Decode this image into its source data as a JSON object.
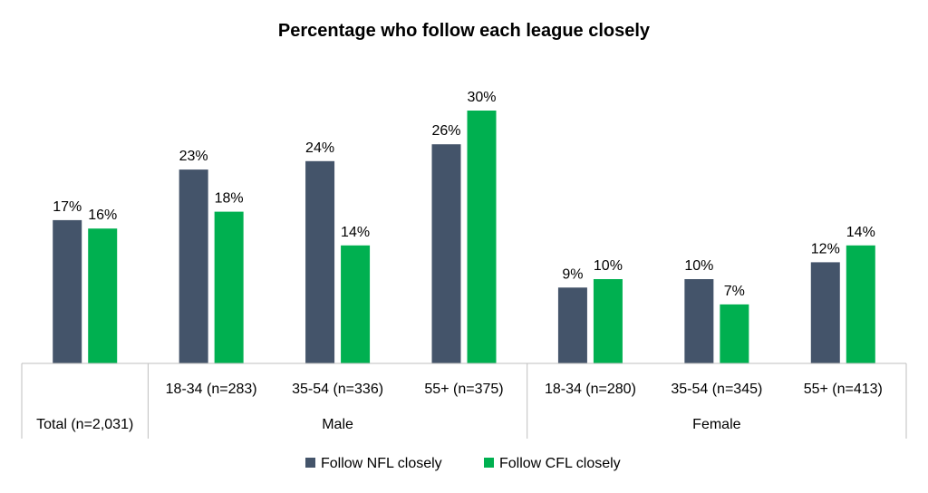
{
  "chart_data": {
    "type": "bar",
    "title": "Percentage who follow each league closely",
    "groups": [
      {
        "label": "",
        "categories": [
          "Total (n=2,031)"
        ]
      },
      {
        "label": "Male",
        "categories": [
          "18-34 (n=283)",
          "35-54 (n=336)",
          "55+ (n=375)"
        ]
      },
      {
        "label": "Female",
        "categories": [
          "18-34 (n=280)",
          "35-54 (n=345)",
          "55+ (n=413)"
        ]
      }
    ],
    "categories": [
      "Total (n=2,031)",
      "18-34 (n=283)",
      "35-54 (n=336)",
      "55+ (n=375)",
      "18-34 (n=280)",
      "35-54 (n=345)",
      "55+ (n=413)"
    ],
    "series": [
      {
        "name": "Follow NFL closely",
        "color": "#44546a",
        "values": [
          17,
          23,
          24,
          26,
          9,
          10,
          12
        ],
        "labels": [
          "17%",
          "23%",
          "24%",
          "26%",
          "9%",
          "10%",
          "12%"
        ]
      },
      {
        "name": "Follow CFL closely",
        "color": "#00b050",
        "values": [
          16,
          18,
          14,
          30,
          10,
          7,
          14
        ],
        "labels": [
          "16%",
          "18%",
          "14%",
          "30%",
          "10%",
          "7%",
          "14%"
        ]
      }
    ],
    "ylim": [
      0,
      30
    ],
    "legend_position": "bottom",
    "grid": false
  }
}
